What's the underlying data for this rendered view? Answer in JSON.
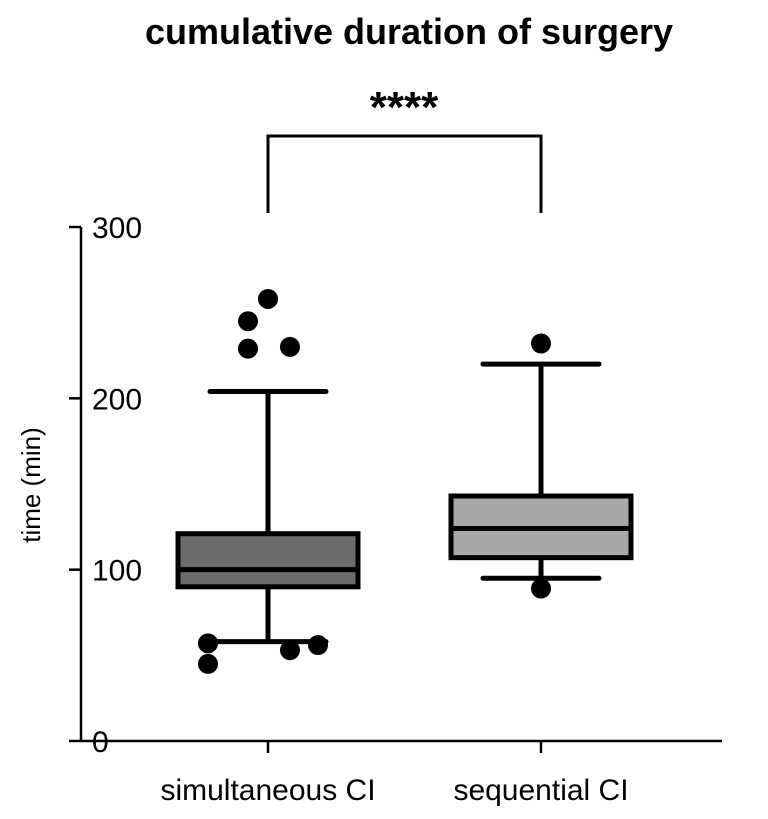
{
  "chart_data": {
    "type": "box",
    "title": "cumulative duration of surgery",
    "ylabel": "time (min)",
    "xlabel": "",
    "ylim": [
      0,
      300
    ],
    "yticks": [
      0,
      100,
      200,
      300
    ],
    "categories": [
      "simultaneous CI",
      "sequential CI"
    ],
    "boxes": [
      {
        "category": "simultaneous CI",
        "whisker_low": 58,
        "q1": 90,
        "median": 100,
        "q3": 121,
        "whisker_high": 204,
        "outliers": [
          258,
          245,
          229,
          230,
          57,
          56,
          53,
          45
        ],
        "color": "#6b6b6b"
      },
      {
        "category": "sequential CI",
        "whisker_low": 95,
        "q1": 107,
        "median": 124,
        "q3": 143,
        "whisker_high": 220,
        "outliers": [
          232,
          89
        ],
        "color": "#a8a8a8"
      }
    ],
    "significance": {
      "label": "****",
      "between": [
        "simultaneous CI",
        "sequential CI"
      ]
    },
    "grid": false,
    "legend": "none"
  }
}
